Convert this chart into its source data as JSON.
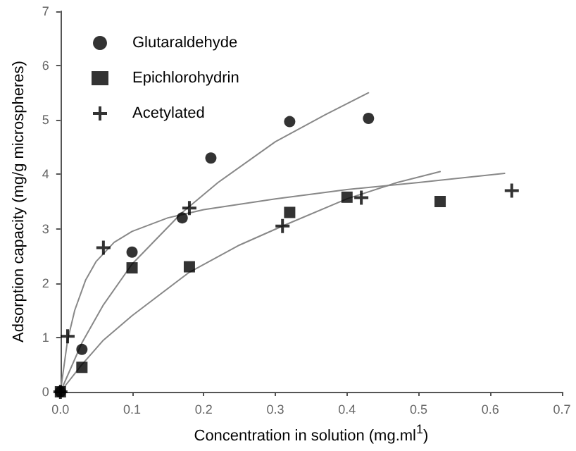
{
  "chart_data": {
    "type": "scatter",
    "xlabel": "Concentration in solution (mg.ml$^{1}$)",
    "ylabel": "Adsorption capacity (mg/g microspheres)",
    "xlim": [
      0,
      0.7
    ],
    "ylim": [
      0,
      7
    ],
    "xticks": [
      {
        "value": 0,
        "label": "0.0"
      },
      0.1,
      0.2,
      0.3,
      0.4,
      0.5,
      0.6,
      0.7
    ],
    "yticks": [
      0,
      1,
      2,
      3,
      4,
      5,
      6,
      7
    ],
    "grid": false,
    "legend": "top left",
    "series": [
      {
        "name": "Glutaraldehyde",
        "color": "#000000",
        "marker": "circle",
        "x": [
          0,
          0.03,
          0.1,
          0.17,
          0.21,
          0.32,
          0.43
        ],
        "values": [
          0,
          0.78,
          2.57,
          3.2,
          4.3,
          4.97,
          5.03
        ]
      },
      {
        "name": "Epichlorohydrin",
        "color": "#000000",
        "marker": "square",
        "x": [
          0,
          0.03,
          0.1,
          0.18,
          0.32,
          0.4,
          0.53
        ],
        "values": [
          0,
          0.45,
          2.28,
          2.3,
          3.3,
          3.58,
          3.5
        ]
      },
      {
        "name": "Acetylated",
        "color": "#000000",
        "marker": "cross",
        "x": [
          0,
          0.01,
          0.06,
          0.18,
          0.31,
          0.42,
          0.63
        ],
        "values": [
          0,
          1.02,
          2.65,
          3.38,
          3.05,
          3.57,
          3.7
        ]
      },
      {
        "type": "line",
        "color": "#888888",
        "marker": "none",
        "x": [
          0,
          0.03,
          0.06,
          0.1,
          0.17,
          0.22,
          0.3,
          0.37,
          0.43
        ],
        "values": [
          0,
          0.9,
          1.6,
          2.35,
          3.3,
          3.85,
          4.6,
          5.1,
          5.5
        ]
      },
      {
        "type": "line",
        "color": "#888888",
        "marker": "none",
        "x": [
          0,
          0.03,
          0.06,
          0.1,
          0.18,
          0.25,
          0.31,
          0.4,
          0.47,
          0.53
        ],
        "values": [
          0,
          0.5,
          0.95,
          1.4,
          2.2,
          2.7,
          3.05,
          3.55,
          3.85,
          4.05
        ]
      },
      {
        "type": "line",
        "color": "#888888",
        "marker": "none",
        "x": [
          0,
          0.01,
          0.02,
          0.035,
          0.05,
          0.075,
          0.1,
          0.15,
          0.2,
          0.3,
          0.4,
          0.5,
          0.62
        ],
        "values": [
          0,
          0.95,
          1.5,
          2.05,
          2.4,
          2.75,
          2.95,
          3.2,
          3.35,
          3.55,
          3.72,
          3.85,
          4.02
        ]
      }
    ]
  }
}
